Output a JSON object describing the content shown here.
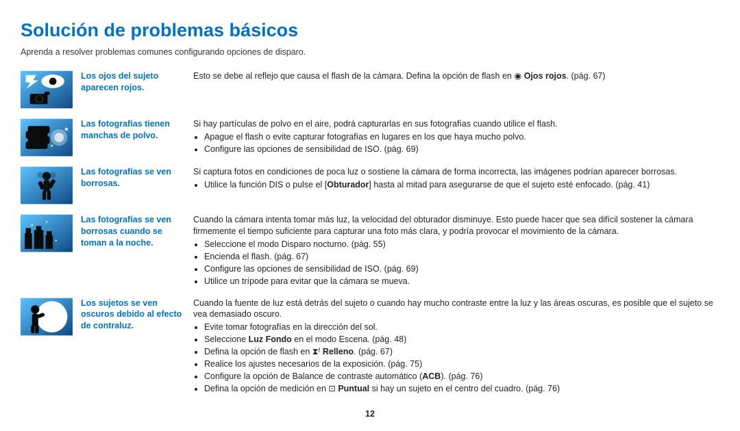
{
  "title": "Solución de problemas básicos",
  "intro": "Aprenda a resolver problemas comunes configurando opciones de disparo.",
  "page_number": "12",
  "colors": {
    "heading": "#0073c8",
    "label": "#0073c8",
    "text": "#222222",
    "icon_bg_light": "#5cc4ff",
    "icon_bg_dark": "#0e4a84",
    "icon_fg": "#0b0b0b"
  },
  "items": [
    {
      "icon": "red-eye-icon",
      "label": "Los ojos del sujeto aparecen rojos.",
      "lead_pre": "Esto se debe al reflejo que causa el flash de la cámara. Defina la opción de flash en ◉ ",
      "lead_bold": "Ojos rojos",
      "lead_post": ". (pág. 67)",
      "bullets": []
    },
    {
      "icon": "dust-icon",
      "label": "Las fotografías tienen manchas de polvo.",
      "lead_plain": "Si hay partículas de polvo en el aire, podrá capturarlas en sus fotografías cuando utilice el flash.",
      "bullets": [
        {
          "text": "Apague el flash o evite capturar fotografías en lugares en los que haya mucho polvo."
        },
        {
          "text": "Configure las opciones de sensibilidad de ISO. (pág. 69)"
        }
      ]
    },
    {
      "icon": "blur-icon",
      "label": "Las fotografías se ven borrosas.",
      "lead_plain": "Si captura fotos en condiciones de poca luz o sostiene la cámara de forma incorrecta, las imágenes podrían aparecer borrosas.",
      "bullets": [
        {
          "pre": "Utilice la función DIS o pulse el [",
          "bold": "Obturador",
          "post": "] hasta al mitad para asegurarse de que el sujeto esté enfocado. (pág. 41)"
        }
      ]
    },
    {
      "icon": "night-icon",
      "label": "Las fotografías se ven borrosas cuando se toman a la noche.",
      "lead_plain": "Cuando la cámara intenta tomar más luz, la velocidad del obturador disminuye. Esto puede hacer que sea difícil sostener la cámara firmemente el tiempo suficiente para capturar una foto más clara, y podría provocar el movimiento de la cámara.",
      "bullets": [
        {
          "text": "Seleccione el modo Disparo nocturno. (pág. 55)"
        },
        {
          "text": "Encienda el flash. (pág. 67)"
        },
        {
          "text": "Configure las opciones de sensibilidad de ISO. (pág. 69)"
        },
        {
          "text": "Utilice un trípode para evitar que la cámara se mueva."
        }
      ]
    },
    {
      "icon": "backlight-icon",
      "label": "Los sujetos se ven oscuros debido al efecto de contraluz.",
      "lead_plain": "Cuando la fuente de luz está detrás del sujeto o cuando hay mucho contraste entre la luz y las áreas oscuras, es posible que el sujeto se vea demasiado oscuro.",
      "bullets": [
        {
          "text": "Evite tomar fotografías en la dirección del sol."
        },
        {
          "pre": "Seleccione ",
          "bold": "Luz Fondo",
          "post": " en el modo Escena. (pág. 48)"
        },
        {
          "pre": "Defina la opción de flash en ⧗ᶠ ",
          "bold": "Relleno",
          "post": ". (pág. 67)"
        },
        {
          "text": "Realice los ajustes necesarios de la exposición. (pág. 75)"
        },
        {
          "pre": "Configure la opción de Balance de contraste automático (",
          "bold": "ACB",
          "post": "). (pág. 76)"
        },
        {
          "pre": "Defina la opción de medición en ⊡ ",
          "bold": "Puntual",
          "post": " si hay un sujeto en el centro del cuadro. (pág. 76)"
        }
      ]
    }
  ]
}
